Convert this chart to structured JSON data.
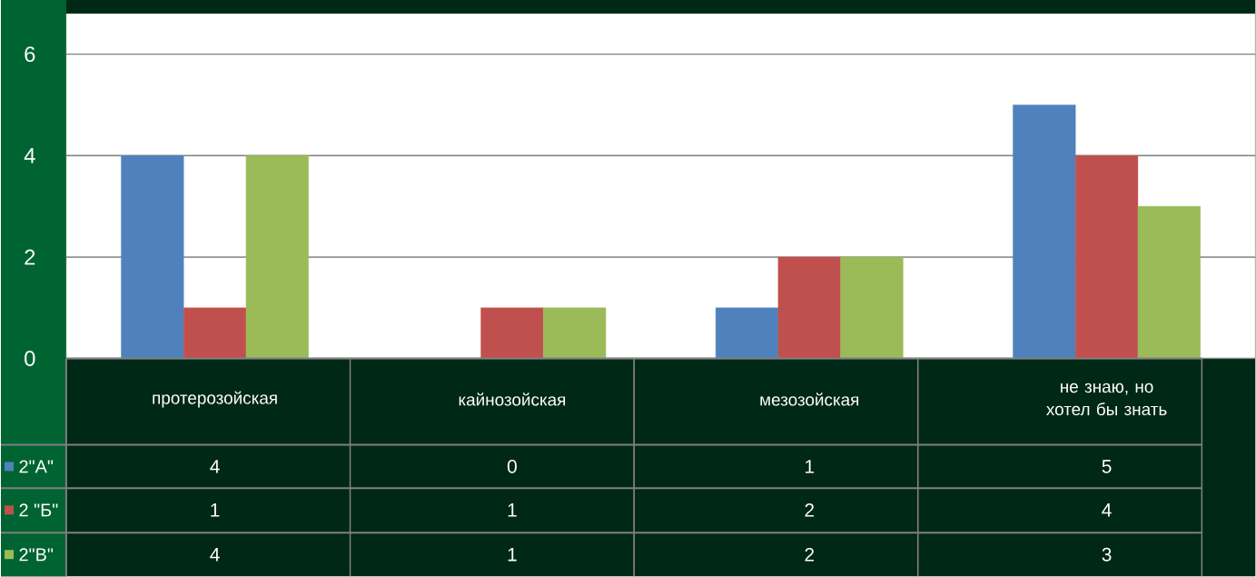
{
  "chart_data": {
    "type": "bar",
    "categories": [
      "протерозойская",
      "кайнозойская",
      "мезозойская",
      "не знаю, но хотел бы знать"
    ],
    "series": [
      {
        "name": "2\"А\"",
        "color": "#4f81bd",
        "values": [
          4,
          0,
          1,
          5
        ]
      },
      {
        "name": "2 \"Б\"",
        "color": "#c0504d",
        "values": [
          1,
          1,
          2,
          4
        ]
      },
      {
        "name": "2\"В\"",
        "color": "#9bbb59",
        "values": [
          4,
          1,
          2,
          3
        ]
      }
    ],
    "ylim": [
      0,
      6.8
    ],
    "yticks": [
      0,
      2,
      4,
      6
    ],
    "grid": "y",
    "data_labels": true,
    "legend": "bottom left"
  }
}
